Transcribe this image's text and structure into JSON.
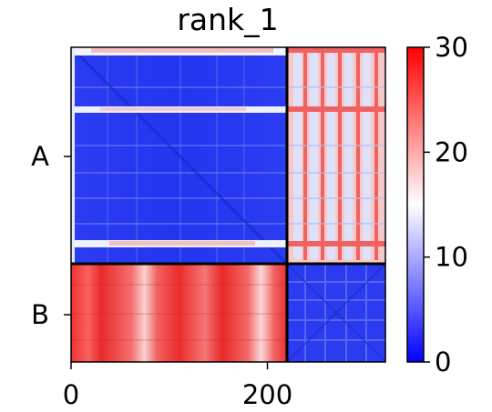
{
  "chart_data": {
    "type": "heatmap",
    "title": "rank_1",
    "xlabel": "",
    "ylabel": "",
    "x_ticks": [
      {
        "value": 0,
        "label": "0"
      },
      {
        "value": 200,
        "label": "200"
      }
    ],
    "y_ticks": [
      {
        "label": "A"
      },
      {
        "label": "B"
      }
    ],
    "xlim": [
      0,
      320
    ],
    "blocks": [
      {
        "row": "A",
        "col": "A",
        "range_x": [
          0,
          220
        ],
        "range_y": [
          0,
          220
        ],
        "level": "low (~2)"
      },
      {
        "row": "A",
        "col": "B",
        "range_x": [
          220,
          320
        ],
        "range_y": [
          0,
          220
        ],
        "level": "high (~20-27)"
      },
      {
        "row": "B",
        "col": "A",
        "range_x": [
          0,
          220
        ],
        "range_y": [
          220,
          320
        ],
        "level": "high (~25-28)"
      },
      {
        "row": "B",
        "col": "B",
        "range_x": [
          220,
          320
        ],
        "range_y": [
          220,
          320
        ],
        "level": "low (~2)"
      }
    ],
    "colorbar": {
      "colormap": "bwr",
      "min": 0,
      "max": 30,
      "ticks": [
        {
          "value": 0,
          "label": "0"
        },
        {
          "value": 10,
          "label": "10"
        },
        {
          "value": 20,
          "label": "20"
        },
        {
          "value": 30,
          "label": "30"
        }
      ],
      "colors": {
        "low": "#0000ff",
        "mid": "#ffffff",
        "high": "#ff0000"
      }
    }
  }
}
